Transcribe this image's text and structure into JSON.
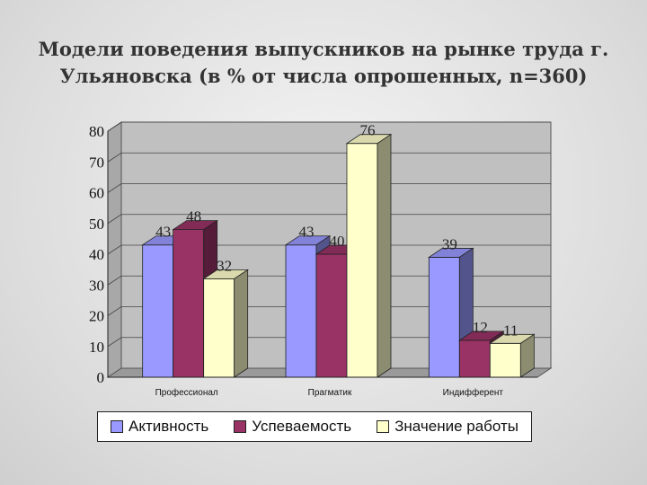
{
  "title": {
    "line1": "Модели поведения выпускников на рынке труда г.",
    "line2": "Ульяновска (в % от числа опрошенных, n=360)"
  },
  "colors": {
    "series": [
      "#9999ff",
      "#993366",
      "#ffffcc"
    ],
    "plot_background": "#c0c0c0",
    "page_background": "#e2e2e2"
  },
  "chart_data": {
    "type": "bar",
    "title": "Модели поведения выпускников на рынке труда г. Ульяновска (в % от числа опрошенных, n=360)",
    "categories": [
      "Профессионал",
      "Прагматик",
      "Индифферент"
    ],
    "series": [
      {
        "name": "Активность",
        "values": [
          43,
          43,
          39
        ]
      },
      {
        "name": "Успеваемость",
        "values": [
          48,
          40,
          12
        ]
      },
      {
        "name": "Значение работы",
        "values": [
          32,
          76,
          11
        ]
      }
    ],
    "xlabel": "",
    "ylabel": "",
    "ylim": [
      0,
      80
    ],
    "yticks": [
      0,
      10,
      20,
      30,
      40,
      50,
      60,
      70,
      80
    ],
    "grid": true,
    "legend": "bottom",
    "style": "3d-clustered-bar"
  }
}
